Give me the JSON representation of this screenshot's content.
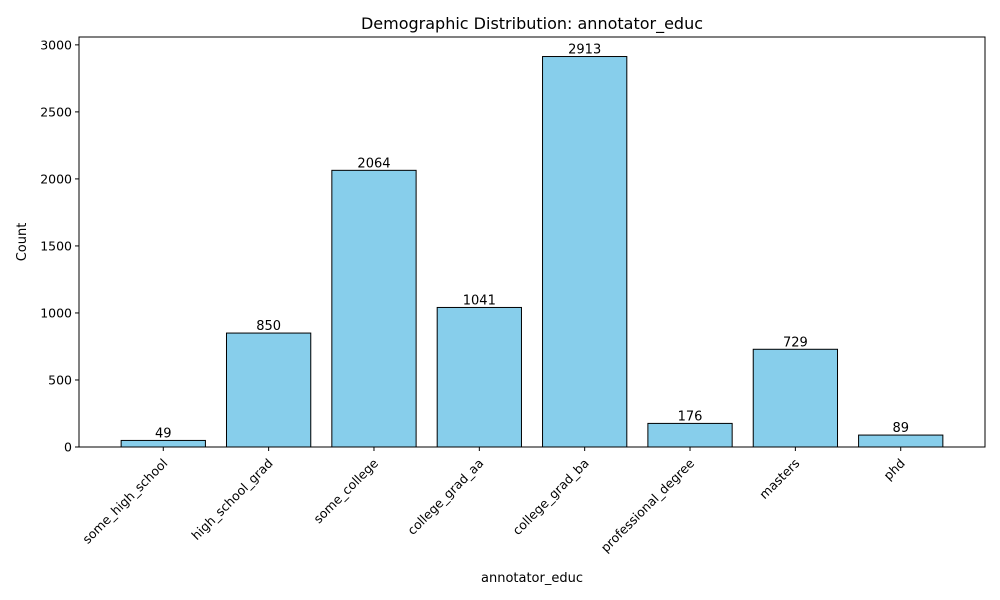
{
  "chart_data": {
    "type": "bar",
    "title": "Demographic Distribution: annotator_educ",
    "xlabel": "annotator_educ",
    "ylabel": "Count",
    "categories": [
      "some_high_school",
      "high_school_grad",
      "some_college",
      "college_grad_aa",
      "college_grad_ba",
      "professional_degree",
      "masters",
      "phd"
    ],
    "values": [
      49,
      850,
      2064,
      1041,
      2913,
      176,
      729,
      89
    ],
    "data_labels": [
      "49",
      "850",
      "2064",
      "1041",
      "2913",
      "176",
      "729",
      "89"
    ],
    "ylim": [
      0,
      3058.65
    ],
    "yticks": [
      0,
      500,
      1000,
      1500,
      2000,
      2500,
      3000
    ],
    "grid": false,
    "colors": {
      "bar_fill": "#87CEEB",
      "bar_edge": "#000000"
    }
  }
}
